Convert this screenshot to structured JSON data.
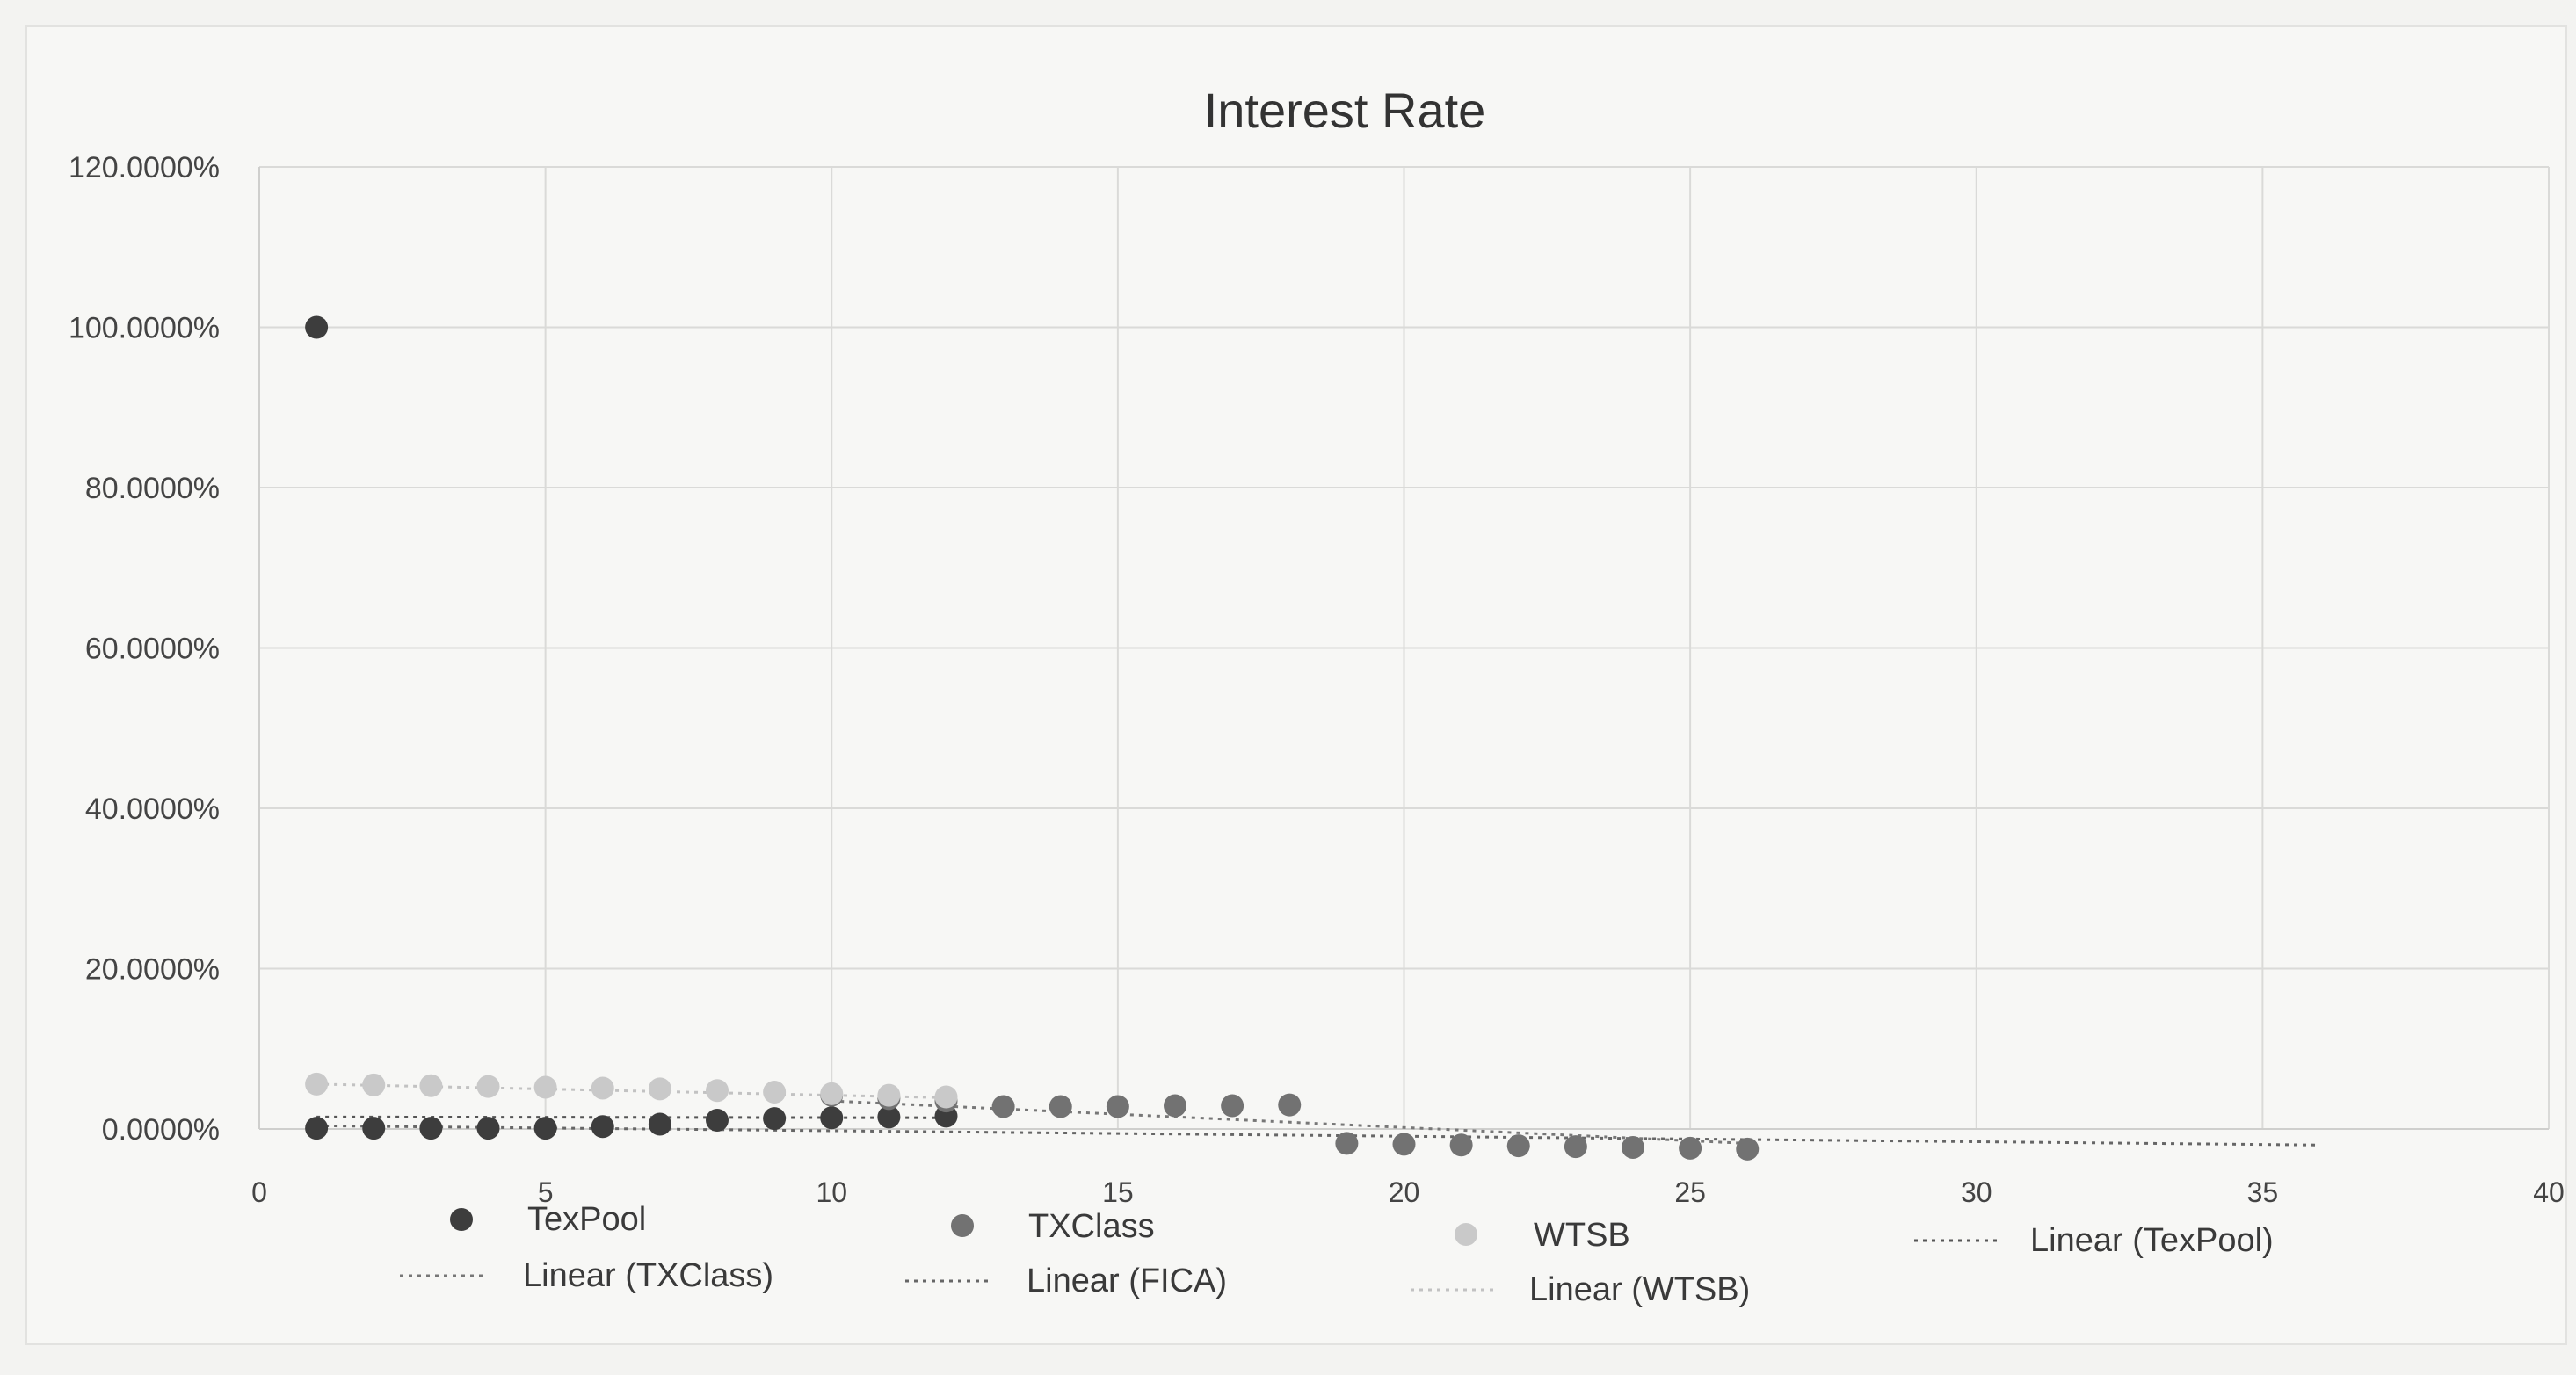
{
  "chart_data": {
    "type": "scatter",
    "title": "Interest Rate",
    "xlabel": "",
    "ylabel": "",
    "xlim": [
      0,
      40
    ],
    "ylim": [
      0,
      120
    ],
    "x_ticks": [
      "0",
      "5",
      "10",
      "15",
      "20",
      "25",
      "30",
      "35",
      "40"
    ],
    "y_ticks": [
      "0.0000%",
      "20.0000%",
      "40.0000%",
      "60.0000%",
      "80.0000%",
      "100.0000%",
      "120.0000%"
    ],
    "grid": true,
    "legend_position": "bottom",
    "series": [
      {
        "name": "TexPool",
        "color": "#3d3d3d",
        "marker": "circle",
        "points": [
          [
            1,
            100
          ],
          [
            1,
            0.1
          ],
          [
            2,
            0.1
          ],
          [
            3,
            0.1
          ],
          [
            4,
            0.1
          ],
          [
            5,
            0.1
          ],
          [
            6,
            0.3
          ],
          [
            7,
            0.6
          ],
          [
            8,
            1.1
          ],
          [
            9,
            1.3
          ],
          [
            10,
            1.4
          ],
          [
            11,
            1.5
          ],
          [
            12,
            1.6
          ]
        ]
      },
      {
        "name": "TXClass",
        "color": "#727272",
        "marker": "circle",
        "points": [
          [
            10,
            4.2
          ],
          [
            11,
            3.8
          ],
          [
            12,
            3.5
          ],
          [
            13,
            2.8
          ],
          [
            14,
            2.8
          ],
          [
            15,
            2.8
          ],
          [
            16,
            2.9
          ],
          [
            17,
            2.9
          ],
          [
            18,
            3.0
          ],
          [
            19,
            -1.8
          ],
          [
            20,
            -1.9
          ],
          [
            21,
            -2.0
          ],
          [
            22,
            -2.1
          ],
          [
            23,
            -2.2
          ],
          [
            24,
            -2.3
          ],
          [
            25,
            -2.4
          ],
          [
            26,
            -2.5
          ]
        ]
      },
      {
        "name": "WTSB",
        "color": "#c9c9c9",
        "marker": "circle",
        "points": [
          [
            1,
            5.6
          ],
          [
            2,
            5.5
          ],
          [
            3,
            5.4
          ],
          [
            4,
            5.3
          ],
          [
            5,
            5.2
          ],
          [
            6,
            5.1
          ],
          [
            7,
            5.0
          ],
          [
            8,
            4.8
          ],
          [
            9,
            4.6
          ],
          [
            10,
            4.4
          ],
          [
            11,
            4.2
          ],
          [
            12,
            4.0
          ]
        ]
      }
    ],
    "trendlines": [
      {
        "name": "Linear (TexPool)",
        "color": "#555555",
        "x_range": [
          1,
          12
        ],
        "y_range": [
          1.5,
          1.4
        ]
      },
      {
        "name": "Linear (TXClass)",
        "color": "#777777",
        "x_range": [
          10,
          26
        ],
        "y_range": [
          3.5,
          -1.8
        ]
      },
      {
        "name": "Linear (FICA)",
        "color": "#666666",
        "x_range": [
          1,
          36
        ],
        "y_range": [
          0.4,
          -2.0
        ]
      },
      {
        "name": "Linear (WTSB)",
        "color": "#c2c2c2",
        "x_range": [
          1,
          12
        ],
        "y_range": [
          5.6,
          3.9
        ]
      }
    ]
  }
}
